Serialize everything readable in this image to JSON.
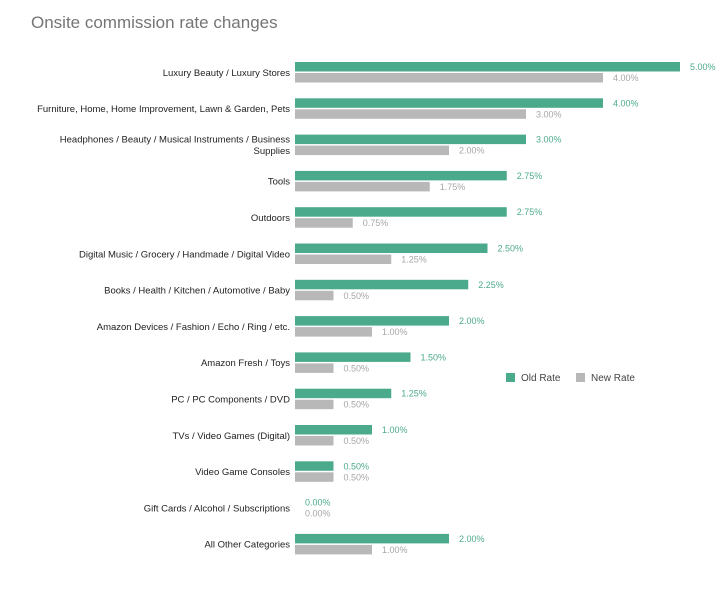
{
  "chart_data": {
    "type": "bar",
    "orientation": "horizontal",
    "title": "Onsite commission rate changes",
    "categories": [
      [
        "Luxury Beauty / Luxury Stores"
      ],
      [
        "Furniture, Home, Home Improvement, Lawn & Garden, Pets"
      ],
      [
        "Headphones / Beauty / Musical Instruments / Business",
        "Supplies"
      ],
      [
        "Tools"
      ],
      [
        "Outdoors"
      ],
      [
        "Digital Music / Grocery / Handmade / Digital Video"
      ],
      [
        "Books / Health / Kitchen / Automotive / Baby"
      ],
      [
        "Amazon Devices / Fashion / Echo / Ring / etc."
      ],
      [
        "Amazon Fresh / Toys"
      ],
      [
        "PC / PC Components / DVD"
      ],
      [
        "TVs / Video Games (Digital)"
      ],
      [
        "Video Game Consoles"
      ],
      [
        "Gift Cards / Alcohol / Subscriptions"
      ],
      [
        "All Other Categories"
      ]
    ],
    "series": [
      {
        "name": "Old Rate",
        "color": "#4caa8c",
        "values": [
          5.0,
          4.0,
          3.0,
          2.75,
          2.75,
          2.5,
          2.25,
          2.0,
          1.5,
          1.25,
          1.0,
          0.5,
          0.0,
          2.0
        ],
        "labels": [
          "5.00%",
          "4.00%",
          "3.00%",
          "2.75%",
          "2.75%",
          "2.50%",
          "2.25%",
          "2.00%",
          "1.50%",
          "1.25%",
          "1.00%",
          "0.50%",
          "0.00%",
          "2.00%"
        ]
      },
      {
        "name": "New Rate",
        "color": "#b8b8b8",
        "values": [
          4.0,
          3.0,
          2.0,
          1.75,
          0.75,
          1.25,
          0.5,
          1.0,
          0.5,
          0.5,
          0.5,
          0.5,
          0.0,
          1.0
        ],
        "labels": [
          "4.00%",
          "3.00%",
          "2.00%",
          "1.75%",
          "0.75%",
          "1.25%",
          "0.50%",
          "1.00%",
          "0.50%",
          "0.50%",
          "0.50%",
          "0.50%",
          "0.00%",
          "1.00%"
        ]
      }
    ],
    "xlim": [
      0,
      5
    ],
    "grid": false,
    "legend_position": "right"
  }
}
